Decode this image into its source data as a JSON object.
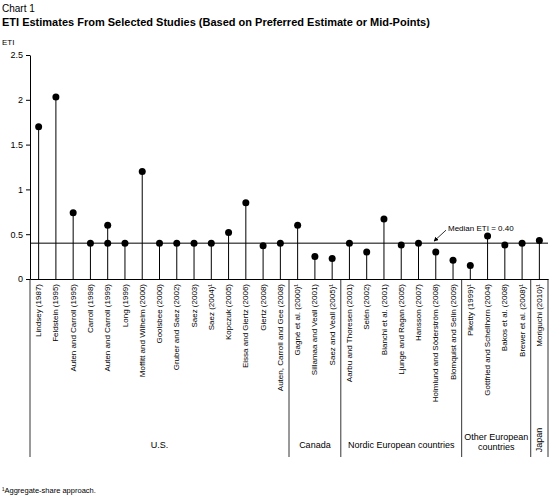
{
  "chart_data": {
    "type": "lollipop",
    "title": "Chart 1",
    "subtitle": "ETI Estimates From Selected Studies (Based on Preferred Estimate or Mid-Points)",
    "y_label": "ETI",
    "categories": [
      "Lindsey (1987)",
      "Feldstein (1995)",
      "Auten and Carroll (1995)",
      "Carroll (1998)",
      "Auten and Carroll (1999)",
      "Long (1999)",
      "Moffitt and Wilhelm (2000)",
      "Goolsbee (2000)",
      "Gruber and Saez (2002)",
      "Saez (2003)",
      "Saez (2004)¹",
      "Kopczuk (2005)",
      "Eissa and Giertz (2006)",
      "Giertz (2008)",
      "Auten, Carroll and Gee (2008)",
      "Gagné et al. (2000)¹",
      "Sillamaa and Veall (2001)",
      "Saez and Veall (2005)¹",
      "Aarbu and Thoresen (2001)",
      "Selén (2002)",
      "Bianchi et al. (2001)",
      "Ljunge and Ragan (2005)",
      "Hansson (2007)",
      "Holmlund and Söderström (2008)",
      "Blomquist and Selin (2009)",
      "Piketty (1999)¹",
      "Gottfried and Schellhorn (2004)",
      "Bakos et al. (2008)",
      "Brewer et al. (2008)¹",
      "Moriguchi (2010)¹"
    ],
    "values": [
      1.7,
      2.03,
      0.74,
      0.4,
      0.6,
      0.4,
      1.2,
      0.4,
      0.4,
      0.4,
      0.4,
      0.52,
      0.85,
      0.37,
      0.4,
      0.6,
      0.25,
      0.23,
      0.4,
      0.3,
      0.67,
      0.38,
      0.4,
      0.3,
      0.21,
      0.15,
      0.48,
      0.38,
      0.4,
      0.43
    ],
    "second_values": [
      null,
      null,
      null,
      null,
      0.4,
      null,
      null,
      null,
      null,
      null,
      null,
      null,
      null,
      null,
      null,
      null,
      null,
      null,
      null,
      null,
      null,
      null,
      null,
      null,
      null,
      null,
      null,
      null,
      null,
      null
    ],
    "color": "#000000",
    "groups": [
      {
        "label": "U.S.",
        "count": 15
      },
      {
        "label": "Canada",
        "count": 3
      },
      {
        "label": "Nordic European countries",
        "count": 7
      },
      {
        "label": "Other European countries",
        "count": 4
      },
      {
        "label": "Japan",
        "count": 1
      }
    ],
    "median": {
      "value": 0.4,
      "label": "Median ETI = 0.40"
    },
    "ylim": [
      0,
      2.5
    ],
    "yticks": [
      0,
      0.5,
      1,
      1.5,
      2,
      2.5
    ],
    "grid": false,
    "footnote": "¹Aggregate-share approach."
  }
}
